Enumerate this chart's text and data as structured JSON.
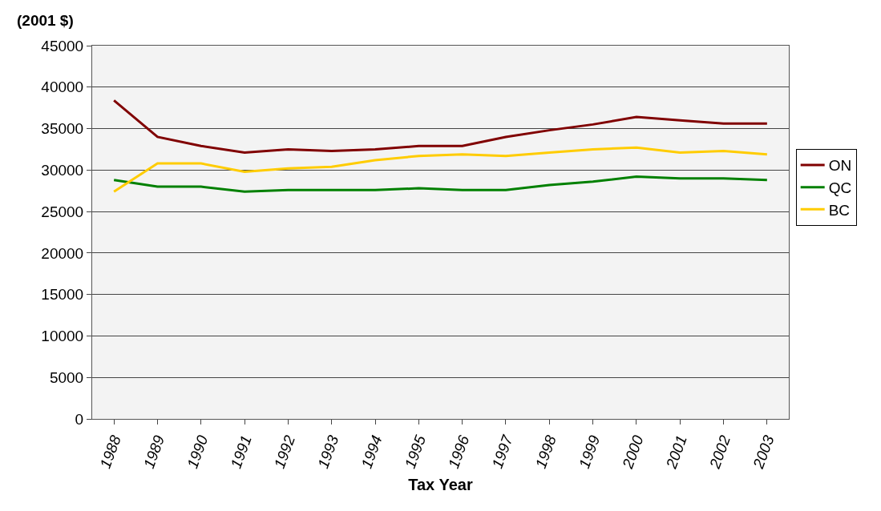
{
  "chart_data": {
    "type": "line",
    "ylabel": "(2001 $)",
    "xlabel": "Tax Year",
    "categories": [
      "1988",
      "1989",
      "1990",
      "1991",
      "1992",
      "1993",
      "1994",
      "1995",
      "1996",
      "1997",
      "1998",
      "1999",
      "2000",
      "2001",
      "2002",
      "2003"
    ],
    "series": [
      {
        "name": "ON",
        "color": "#800000",
        "values": [
          38400,
          34000,
          32900,
          32100,
          32500,
          32300,
          32500,
          32900,
          32900,
          34000,
          34800,
          35500,
          36400,
          36000,
          35600,
          35600
        ]
      },
      {
        "name": "QC",
        "color": "#008000",
        "values": [
          28800,
          28000,
          28000,
          27400,
          27600,
          27600,
          27600,
          27800,
          27600,
          27600,
          28200,
          28600,
          29200,
          29000,
          29000,
          28800
        ]
      },
      {
        "name": "BC",
        "color": "#ffcc00",
        "values": [
          27400,
          30800,
          30800,
          29800,
          30200,
          30400,
          31200,
          31700,
          31900,
          31700,
          32100,
          32500,
          32700,
          32100,
          32300,
          31900
        ]
      }
    ],
    "ylim": [
      0,
      45000
    ],
    "yticks": [
      0,
      5000,
      10000,
      15000,
      20000,
      25000,
      30000,
      35000,
      40000,
      45000
    ],
    "grid": "y",
    "legend": "right",
    "marker": "none",
    "line_style": "solid"
  }
}
